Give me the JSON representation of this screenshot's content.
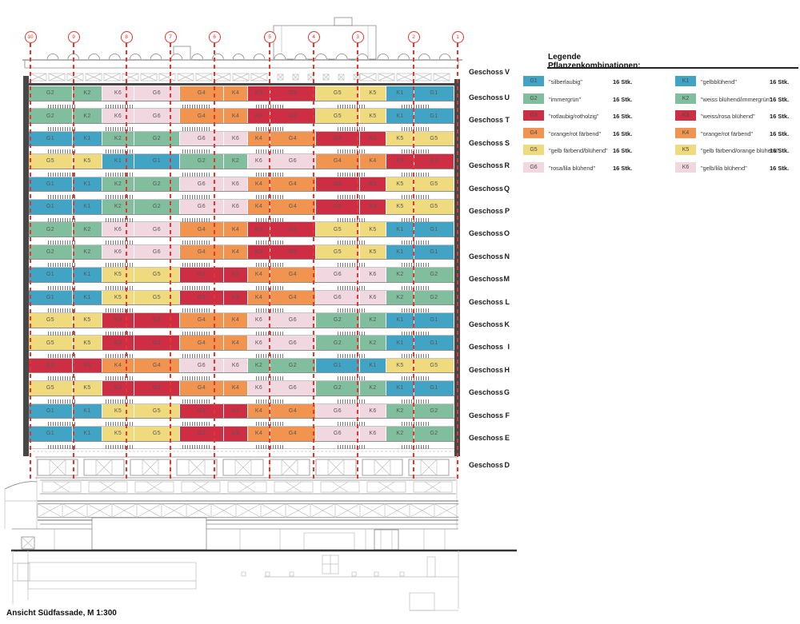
{
  "caption": "Ansicht Südfassade, M 1:300",
  "axis_numbers": [
    "10",
    "9",
    "8",
    "7",
    "6",
    "5",
    "4",
    "3",
    "2",
    "1"
  ],
  "floor_label_prefix": "Geschoss",
  "palette": {
    "G1": "#41a4c4",
    "K1": "#41a4c4",
    "G2": "#81be9d",
    "K2": "#81be9d",
    "G3": "#cd2e43",
    "K3": "#cd2e43",
    "G4": "#f1944f",
    "K4": "#f1944f",
    "G5": "#efda7d",
    "K5": "#efda7d",
    "G6": "#f1d7df",
    "K6": "#f1d7df"
  },
  "floors": [
    {
      "letter": "V",
      "cells": []
    },
    {
      "letter": "U",
      "cells": [
        "G2",
        "K2",
        "K6",
        "G6",
        "G4",
        "K4",
        "K3",
        "G3",
        "G5",
        "K5",
        "K1",
        "G1"
      ]
    },
    {
      "letter": "T",
      "cells": [
        "G2",
        "K2",
        "K6",
        "G6",
        "G4",
        "K4",
        "K3",
        "G3",
        "G5",
        "K5",
        "K1",
        "G1"
      ]
    },
    {
      "letter": "S",
      "cells": [
        "G1",
        "K1",
        "K2",
        "G2",
        "G6",
        "K6",
        "K4",
        "G4",
        "G3",
        "K3",
        "K5",
        "G5"
      ]
    },
    {
      "letter": "R",
      "cells": [
        "G5",
        "K5",
        "K1",
        "G1",
        "G2",
        "K2",
        "K6",
        "G6",
        "G4",
        "K4",
        "K3",
        "G3"
      ]
    },
    {
      "letter": "Q",
      "cells": [
        "G1",
        "K1",
        "K2",
        "G2",
        "G6",
        "K6",
        "K4",
        "G4",
        "G3",
        "K3",
        "K5",
        "G5"
      ]
    },
    {
      "letter": "P",
      "cells": [
        "G1",
        "K1",
        "K2",
        "G2",
        "G6",
        "K6",
        "K4",
        "G4",
        "G3",
        "K3",
        "K5",
        "G5"
      ]
    },
    {
      "letter": "O",
      "cells": [
        "G2",
        "K2",
        "K6",
        "G6",
        "G4",
        "K4",
        "K3",
        "G3",
        "G5",
        "K5",
        "K1",
        "G1"
      ]
    },
    {
      "letter": "N",
      "cells": [
        "G2",
        "K2",
        "K6",
        "G6",
        "G4",
        "K4",
        "K3",
        "G3",
        "G5",
        "K5",
        "K1",
        "G1"
      ]
    },
    {
      "letter": "M",
      "cells": [
        "G1",
        "K1",
        "K5",
        "G5",
        "G3",
        "K3",
        "K4",
        "G4",
        "G6",
        "K6",
        "K2",
        "G2"
      ]
    },
    {
      "letter": "L",
      "cells": [
        "G1",
        "K1",
        "K5",
        "G5",
        "G3",
        "K3",
        "K4",
        "G4",
        "G6",
        "K6",
        "K2",
        "G2"
      ]
    },
    {
      "letter": "K",
      "cells": [
        "G5",
        "K5",
        "K3",
        "G3",
        "G4",
        "K4",
        "K6",
        "G6",
        "G2",
        "K2",
        "K1",
        "G1"
      ]
    },
    {
      "letter": "I",
      "cells": [
        "G5",
        "K5",
        "K3",
        "G3",
        "G4",
        "K4",
        "K6",
        "G6",
        "G2",
        "K2",
        "K1",
        "G1"
      ]
    },
    {
      "letter": "H",
      "cells": [
        "G3",
        "K3",
        "K4",
        "G4",
        "G6",
        "K6",
        "K2",
        "G2",
        "G1",
        "K1",
        "K5",
        "G5"
      ]
    },
    {
      "letter": "G",
      "cells": [
        "G5",
        "K5",
        "K3",
        "G3",
        "G4",
        "K4",
        "K6",
        "G6",
        "G2",
        "K2",
        "K1",
        "G1"
      ]
    },
    {
      "letter": "F",
      "cells": [
        "G1",
        "K1",
        "K5",
        "G5",
        "G3",
        "K3",
        "K4",
        "G4",
        "G6",
        "K6",
        "K2",
        "G2"
      ]
    },
    {
      "letter": "E",
      "cells": [
        "G1",
        "K1",
        "K5",
        "G5",
        "G3",
        "K3",
        "K4",
        "G4",
        "G6",
        "K6",
        "K2",
        "G2"
      ]
    },
    {
      "letter": "D",
      "cells": []
    }
  ],
  "legend": {
    "title": "Legende Pflanzenkombinationen:",
    "columns": [
      {
        "items": [
          {
            "code": "G1",
            "label": "\"silberlaubig\"",
            "count": "16 Stk."
          },
          {
            "code": "G2",
            "label": "\"immergrün\"",
            "count": "16 Stk."
          },
          {
            "code": "G3",
            "label": "\"rotlaubig/rotholzig\"",
            "count": "16 Stk."
          },
          {
            "code": "G4",
            "label": "\"orange/rot färbend\"",
            "count": "16 Stk."
          },
          {
            "code": "G5",
            "label": "\"gelb färbend/blühend\"",
            "count": "16 Stk."
          },
          {
            "code": "G6",
            "label": "\"rosa/lila blühend\"",
            "count": "16 Stk."
          }
        ]
      },
      {
        "items": [
          {
            "code": "K1",
            "label": "\"gelbblühend\"",
            "count": "16 Stk."
          },
          {
            "code": "K2",
            "label": "\"weiss blühend/immergrün\"",
            "count": "16 Stk."
          },
          {
            "code": "K3",
            "label": "\"weiss/rosa blühend\"",
            "count": "16 Stk."
          },
          {
            "code": "K4",
            "label": "\"orange/rot färbend\"",
            "count": "16 Stk."
          },
          {
            "code": "K5",
            "label": "\"gelb färbend/orange blühend\"",
            "count": "16 Stk."
          },
          {
            "code": "K6",
            "label": "\"gelb/lila blühend\"",
            "count": "16 Stk."
          }
        ]
      }
    ]
  }
}
